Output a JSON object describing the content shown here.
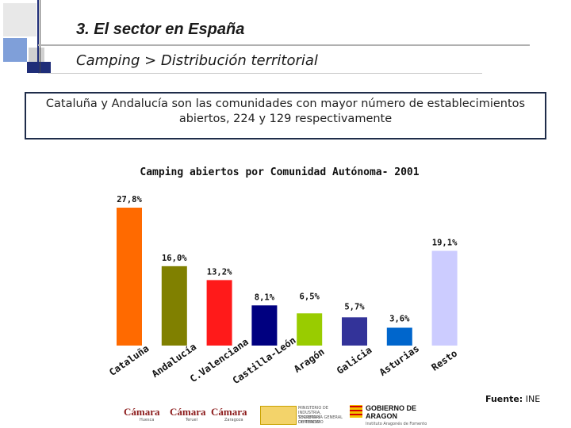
{
  "slide": {
    "section_title": "3. El sector en España",
    "subtitle": "Camping > Distribución territorial",
    "callout": "Cataluña y Andalucía son las comunidades con mayor número de establecimientos abiertos, 224 y 129 respectivamente",
    "source_label": "Fuente:",
    "source_value": "INE"
  },
  "chart_data": {
    "type": "bar",
    "title": "Camping abiertos por Comunidad Autónoma- 2001",
    "categories": [
      "Cataluña",
      "Andalucía",
      "C.Valenciana",
      "Castilla-León",
      "Aragón",
      "Galicia",
      "Asturias",
      "Resto"
    ],
    "values": [
      27.8,
      16.0,
      13.2,
      8.1,
      6.5,
      5.7,
      3.6,
      19.1
    ],
    "labels": [
      "27,8%",
      "16,0%",
      "13,2%",
      "8,1%",
      "6,5%",
      "5,7%",
      "3,6%",
      "19,1%"
    ],
    "colors": [
      "#ff6a00",
      "#808000",
      "#ff1a1a",
      "#000080",
      "#99cc00",
      "#333399",
      "#0066cc",
      "#ccccff"
    ],
    "xlabel": "",
    "ylabel": "",
    "ylim": [
      0,
      30
    ],
    "grid": false,
    "legend": "none"
  },
  "footer": {
    "logo_camara": "Cámara",
    "logo_cities": [
      "Huesca",
      "Teruel",
      "Zaragoza"
    ],
    "ministry": "MINISTERIO DE INDUSTRIA, TURISMO Y COMERCIO",
    "secretaria": "SECRETARÍA GENERAL DE TURISMO",
    "gov": "GOBIERNO DE ARAGON",
    "gov_sub": "Instituto Aragonés de Fomento"
  }
}
